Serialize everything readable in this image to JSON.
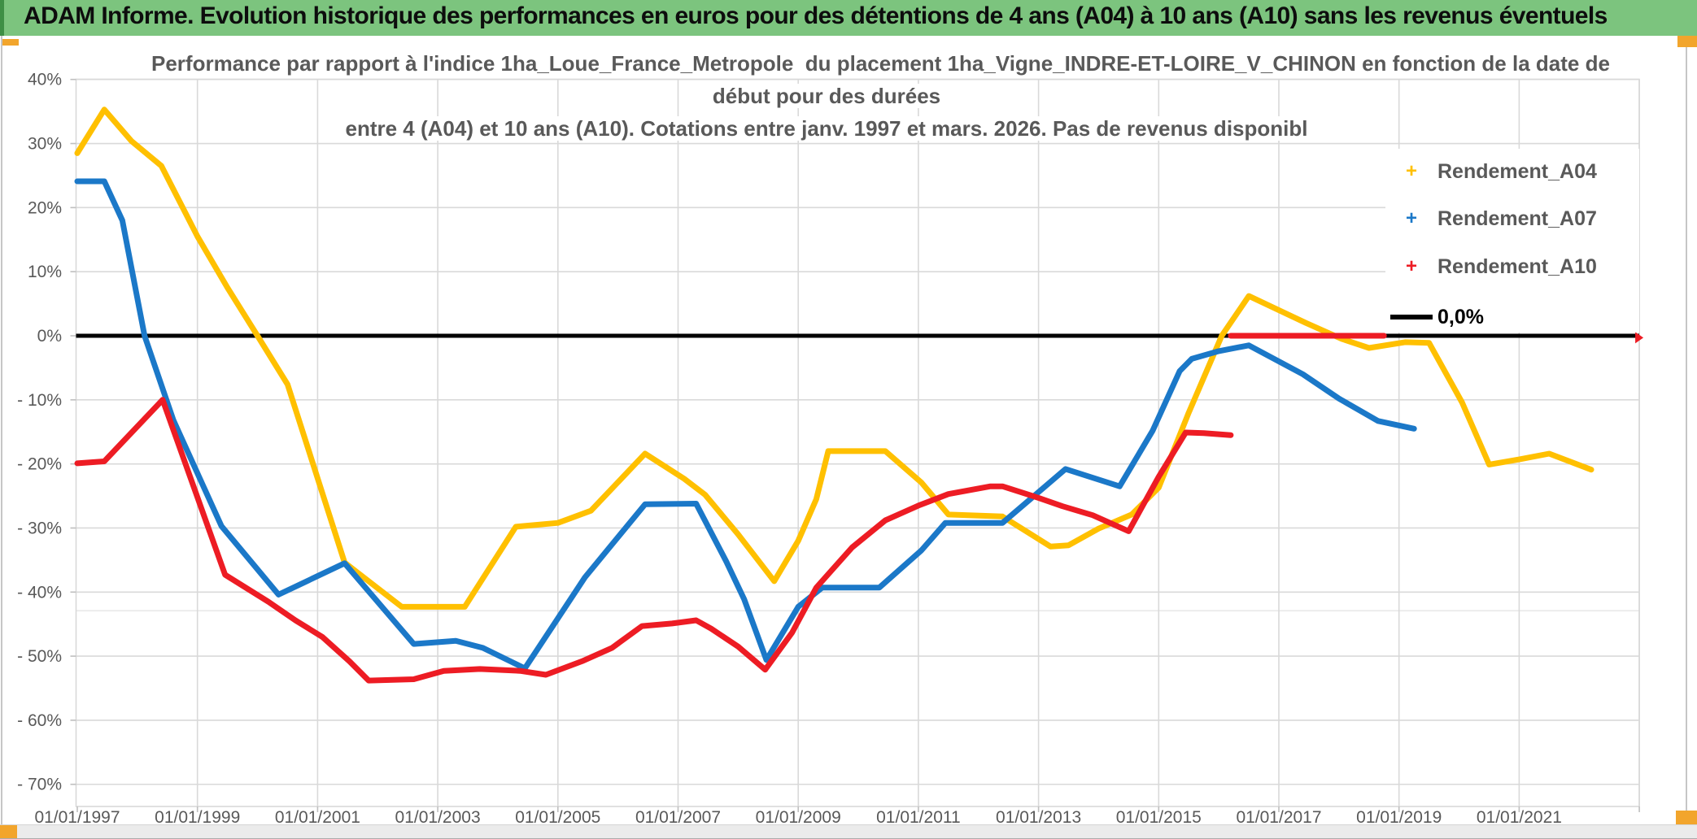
{
  "banner": {
    "title": "ADAM Informe. Evolution historique des performances en euros pour des détentions de 4 ans (A04) à 10 ans (A10) sans les revenus éventuels",
    "bg_color": "#7CC47E",
    "accent_color": "#F2A52C"
  },
  "chart": {
    "title_lines": [
      "Performance par rapport à l'indice 1ha_Loue_France_Metropole  du placement 1ha_Vigne_INDRE-ET-LOIRE_V_CHINON en fonction de la date de",
      "début pour des durées",
      "entre 4 (A04) et 10 ans (A10). Cotations entre janv. 1997 et mars. 2026. Pas de revenus disponibl"
    ],
    "legend": {
      "items": [
        {
          "label": "Rendement_A04",
          "marker": "+",
          "color": "#FFC000"
        },
        {
          "label": "Rendement_A07",
          "marker": "+",
          "color": "#1B78C8"
        },
        {
          "label": "Rendement_A10",
          "marker": "+",
          "color": "#ED1C24"
        }
      ],
      "zero_item": {
        "label": "0,0%",
        "color": "#000000"
      }
    }
  },
  "chart_data": {
    "type": "line",
    "x_unit": "decimal_year",
    "x_range": [
      1997,
      2023.3
    ],
    "y_range_pct": [
      -75,
      45
    ],
    "grid": true,
    "legend_position": "top-right",
    "grid_color": "#D9D9D9",
    "extra_faint_gridline_pct": -42.9,
    "y_ticks": [
      {
        "value": 40,
        "label": "40%"
      },
      {
        "value": 30,
        "label": "30%"
      },
      {
        "value": 20,
        "label": "20%"
      },
      {
        "value": 10,
        "label": "10%"
      },
      {
        "value": 0,
        "label": "0%"
      },
      {
        "value": -10,
        "label": "- 10%"
      },
      {
        "value": -20,
        "label": "- 20%"
      },
      {
        "value": -30,
        "label": "- 30%"
      },
      {
        "value": -40,
        "label": "- 40%"
      },
      {
        "value": -50,
        "label": "- 50%"
      },
      {
        "value": -60,
        "label": "- 60%"
      },
      {
        "value": -70,
        "label": "- 70%"
      }
    ],
    "x_ticks": [
      {
        "year": 1997,
        "label": "01/01/1997"
      },
      {
        "year": 1999,
        "label": "01/01/1999"
      },
      {
        "year": 2001,
        "label": "01/01/2001"
      },
      {
        "year": 2003,
        "label": "01/01/2003"
      },
      {
        "year": 2005,
        "label": "01/01/2005"
      },
      {
        "year": 2007,
        "label": "01/01/2007"
      },
      {
        "year": 2009,
        "label": "01/01/2009"
      },
      {
        "year": 2011,
        "label": "01/01/2011"
      },
      {
        "year": 2013,
        "label": "01/01/2013"
      },
      {
        "year": 2015,
        "label": "01/01/2015"
      },
      {
        "year": 2017,
        "label": "01/01/2017"
      },
      {
        "year": 2019,
        "label": "01/01/2019"
      },
      {
        "year": 2021,
        "label": "01/01/2021"
      }
    ],
    "zero_line": {
      "name": "0,0%",
      "color": "#000000",
      "value": 0
    },
    "series": [
      {
        "name": "Rendement_A04",
        "color": "#FFC000",
        "segments": [
          [
            [
              1997.0,
              28.5
            ],
            [
              1997.45,
              35.3
            ],
            [
              1997.9,
              30.4
            ],
            [
              1998.4,
              26.5
            ],
            [
              1999.0,
              15.5
            ],
            [
              1999.5,
              7.5
            ],
            [
              2000.0,
              0.0
            ],
            [
              2000.5,
              -7.6
            ],
            [
              2001.45,
              -35.4
            ],
            [
              2002.4,
              -42.3
            ],
            [
              2003.45,
              -42.3
            ],
            [
              2004.3,
              -29.8
            ],
            [
              2005.0,
              -29.2
            ],
            [
              2005.55,
              -27.3
            ],
            [
              2006.45,
              -18.4
            ],
            [
              2007.1,
              -22.3
            ],
            [
              2007.45,
              -24.8
            ],
            [
              2008.0,
              -31.0
            ],
            [
              2008.6,
              -38.3
            ],
            [
              2009.0,
              -32.0
            ],
            [
              2009.3,
              -25.5
            ],
            [
              2009.5,
              -18.0
            ],
            [
              2010.45,
              -18.0
            ],
            [
              2011.05,
              -22.9
            ],
            [
              2011.5,
              -27.9
            ],
            [
              2012.4,
              -28.2
            ],
            [
              2013.2,
              -32.9
            ],
            [
              2013.5,
              -32.7
            ],
            [
              2014.0,
              -30.1
            ],
            [
              2014.55,
              -27.9
            ],
            [
              2015.0,
              -23.7
            ],
            [
              2015.5,
              -12.0
            ],
            [
              2016.05,
              0.0
            ],
            [
              2016.5,
              6.2
            ],
            [
              2017.45,
              2.0
            ],
            [
              2018.05,
              -0.5
            ],
            [
              2018.5,
              -1.9
            ],
            [
              2019.1,
              -1.0
            ],
            [
              2019.5,
              -1.1
            ],
            [
              2020.05,
              -10.4
            ],
            [
              2020.5,
              -20.1
            ],
            [
              2021.0,
              -19.3
            ],
            [
              2021.5,
              -18.4
            ],
            [
              2022.2,
              -20.9
            ]
          ]
        ]
      },
      {
        "name": "Rendement_A07",
        "color": "#1B78C8",
        "segments": [
          [
            [
              1997.0,
              24.1
            ],
            [
              1997.45,
              24.1
            ],
            [
              1997.75,
              18.0
            ],
            [
              1998.12,
              0.0
            ],
            [
              1998.6,
              -13.2
            ],
            [
              1999.4,
              -29.7
            ],
            [
              2000.35,
              -40.4
            ],
            [
              2001.45,
              -35.5
            ],
            [
              2002.6,
              -48.1
            ],
            [
              2003.3,
              -47.6
            ],
            [
              2003.75,
              -48.7
            ],
            [
              2004.45,
              -51.9
            ],
            [
              2005.45,
              -37.7
            ],
            [
              2006.45,
              -26.3
            ],
            [
              2007.3,
              -26.2
            ],
            [
              2007.8,
              -35.2
            ],
            [
              2008.1,
              -41.1
            ],
            [
              2008.47,
              -50.6
            ],
            [
              2009.0,
              -42.3
            ],
            [
              2009.4,
              -39.3
            ],
            [
              2010.35,
              -39.3
            ],
            [
              2011.05,
              -33.5
            ],
            [
              2011.45,
              -29.2
            ],
            [
              2012.4,
              -29.2
            ],
            [
              2013.45,
              -20.8
            ],
            [
              2014.35,
              -23.5
            ],
            [
              2014.9,
              -14.8
            ],
            [
              2015.35,
              -5.5
            ],
            [
              2015.55,
              -3.6
            ],
            [
              2016.0,
              -2.4
            ],
            [
              2016.5,
              -1.5
            ],
            [
              2017.4,
              -6.0
            ],
            [
              2018.0,
              -9.8
            ],
            [
              2018.65,
              -13.3
            ],
            [
              2019.25,
              -14.5
            ]
          ]
        ]
      },
      {
        "name": "Rendement_A10",
        "color": "#ED1C24",
        "segments": [
          [
            [
              1997.0,
              -19.9
            ],
            [
              1997.45,
              -19.6
            ],
            [
              1998.42,
              -10.0
            ],
            [
              1999.46,
              -37.3
            ],
            [
              2000.18,
              -41.5
            ],
            [
              2000.63,
              -44.4
            ],
            [
              2001.08,
              -47.0
            ],
            [
              2001.53,
              -50.8
            ],
            [
              2001.85,
              -53.8
            ],
            [
              2002.6,
              -53.6
            ],
            [
              2003.1,
              -52.3
            ],
            [
              2003.7,
              -52.0
            ],
            [
              2004.37,
              -52.3
            ],
            [
              2004.8,
              -52.9
            ],
            [
              2005.4,
              -50.8
            ],
            [
              2005.9,
              -48.7
            ],
            [
              2006.4,
              -45.3
            ],
            [
              2006.9,
              -44.9
            ],
            [
              2007.3,
              -44.4
            ],
            [
              2007.55,
              -45.7
            ],
            [
              2008.0,
              -48.5
            ],
            [
              2008.45,
              -52.1
            ],
            [
              2008.9,
              -46.3
            ],
            [
              2009.3,
              -39.3
            ],
            [
              2009.9,
              -33.0
            ],
            [
              2010.45,
              -28.8
            ],
            [
              2011.0,
              -26.5
            ],
            [
              2011.5,
              -24.7
            ],
            [
              2012.2,
              -23.5
            ],
            [
              2012.4,
              -23.5
            ],
            [
              2013.0,
              -25.3
            ],
            [
              2013.4,
              -26.6
            ],
            [
              2013.9,
              -28.0
            ],
            [
              2014.5,
              -30.5
            ],
            [
              2015.0,
              -22.0
            ],
            [
              2015.45,
              -15.1
            ],
            [
              2015.75,
              -15.2
            ],
            [
              2016.2,
              -15.5
            ]
          ],
          [
            [
              2016.2,
              0.0
            ],
            [
              2018.75,
              0.0
            ]
          ]
        ],
        "isolated_points": [
          [
            2023.0,
            -0.3
          ]
        ]
      }
    ]
  }
}
